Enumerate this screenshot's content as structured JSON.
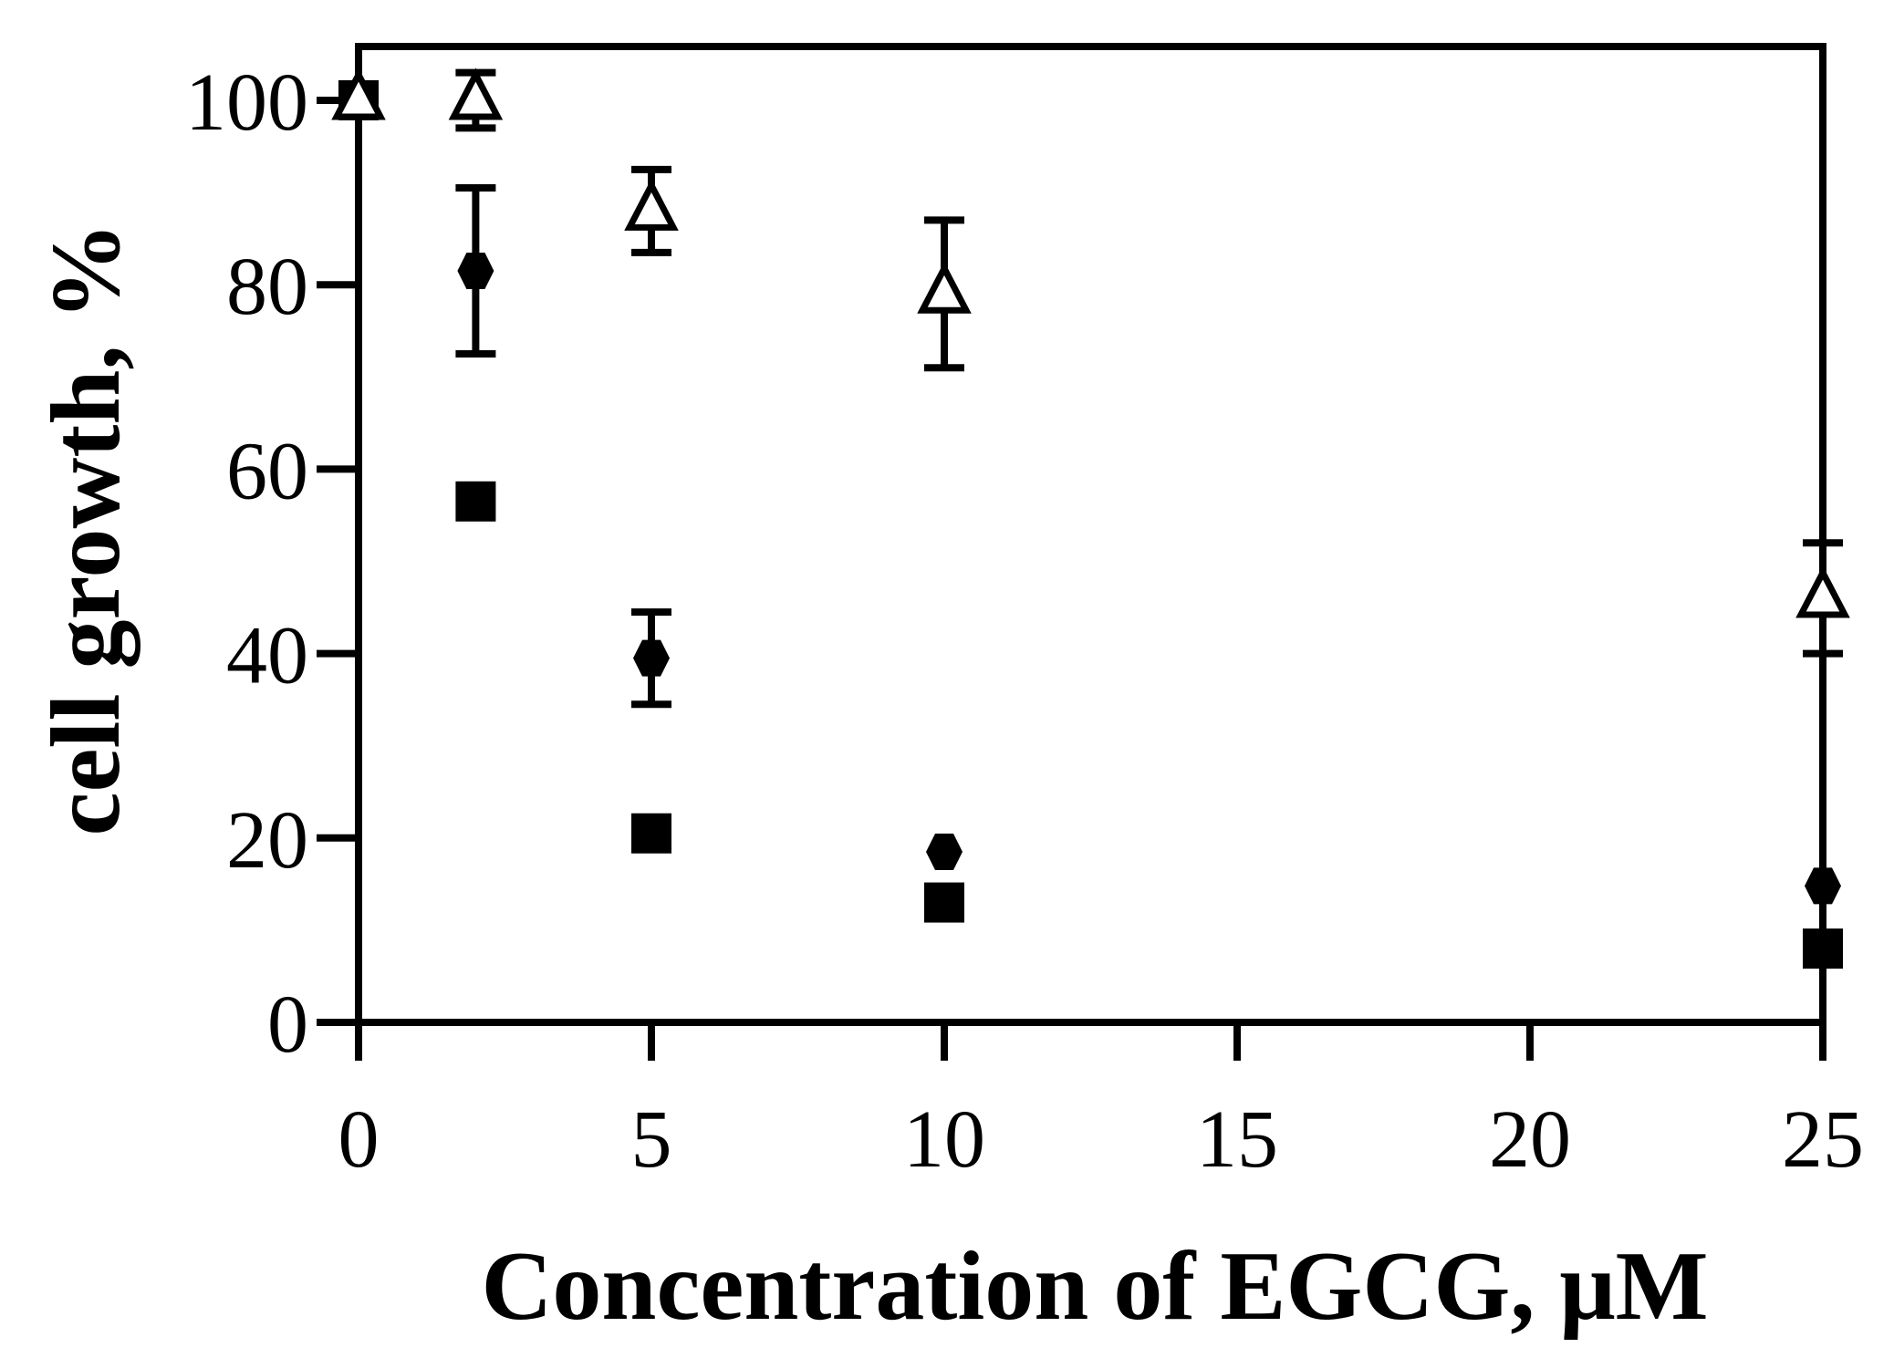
{
  "chart_data": {
    "type": "scatter",
    "title": "",
    "xlabel": "Concentration of EGCG, μM",
    "ylabel": "cell growth, %",
    "xlim": [
      0,
      25
    ],
    "ylim": [
      0,
      105
    ],
    "xticks": [
      0,
      5,
      10,
      15,
      20,
      25
    ],
    "yticks": [
      0,
      20,
      40,
      60,
      80,
      100
    ],
    "xtick_labels": [
      "0",
      "5",
      "10",
      "15",
      "20",
      "25"
    ],
    "ytick_labels": [
      "0",
      "20",
      "40",
      "60",
      "80",
      "100"
    ],
    "grid": false,
    "legend": false,
    "series": [
      {
        "marker": "square",
        "filled": true,
        "color": "#000000",
        "x": [
          0,
          2,
          5,
          10,
          25
        ],
        "y": [
          100,
          56.5,
          20.5,
          13,
          8
        ],
        "error": [
          null,
          null,
          null,
          null,
          null
        ]
      },
      {
        "marker": "diamond",
        "filled": true,
        "color": "#000000",
        "x": [
          0,
          2,
          5,
          10,
          25
        ],
        "y": [
          100,
          81.5,
          39.5,
          18.5,
          14.8
        ],
        "error": [
          null,
          9,
          5,
          null,
          null
        ]
      },
      {
        "marker": "triangle",
        "filled": false,
        "color": "#000000",
        "x": [
          0,
          2,
          5,
          10,
          25
        ],
        "y": [
          100,
          100,
          88,
          79,
          46
        ],
        "error": [
          null,
          3,
          4.5,
          8,
          6
        ]
      }
    ]
  }
}
